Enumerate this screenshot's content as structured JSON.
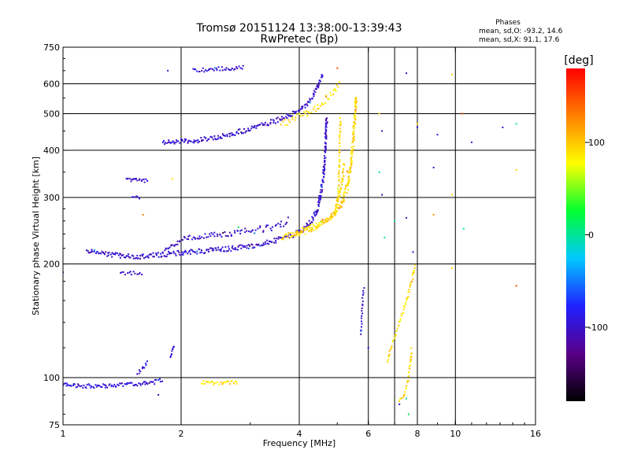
{
  "chart_data": {
    "type": "scatter",
    "title": "Tromsø 20151124 13:38:00-13:39:43",
    "subtitle": "RwPretec (Bp)",
    "xlabel": "Frequency [MHz]",
    "ylabel": "Stationary phase Virtual Height [km]",
    "x_scale": "log",
    "y_scale": "log",
    "xlim": [
      1,
      16
    ],
    "ylim": [
      75,
      750
    ],
    "x_ticks": [
      1,
      2,
      4,
      6,
      8,
      10,
      16
    ],
    "x_tick_labels": [
      "1",
      "2",
      "4",
      "6",
      "8",
      "10",
      "16"
    ],
    "x_grid_lines": [
      2,
      4,
      6,
      7,
      8,
      10
    ],
    "y_ticks": [
      75,
      100,
      200,
      300,
      400,
      500,
      600,
      750
    ],
    "y_tick_labels": [
      "75",
      "100",
      "200",
      "300",
      "400",
      "500",
      "600",
      "750"
    ],
    "y_grid_lines": [
      100,
      200,
      300,
      400,
      500,
      600
    ],
    "grid": true,
    "stats": {
      "heading": "Phases",
      "line_o": "mean, sd,O: -93.2, 14.6",
      "line_x": "mean, sd,X:  91.1, 17.6"
    },
    "colorbar": {
      "label": "[deg]",
      "min": -180,
      "max": 180,
      "ticks": [
        100,
        0,
        -100
      ],
      "tick_labels": [
        "100",
        "0",
        "-100"
      ],
      "stops": [
        "#000000",
        "#5a0088",
        "#2020ff",
        "#00c8ff",
        "#00ff30",
        "#ffff00",
        "#ff8000",
        "#ff0000"
      ]
    },
    "series": [
      {
        "kind": "trace",
        "phase": -95,
        "spread": 0.012,
        "density": 1.4,
        "points": [
          [
            1.0,
            96
          ],
          [
            1.1,
            95
          ],
          [
            1.3,
            95
          ],
          [
            1.5,
            96
          ],
          [
            1.7,
            97
          ],
          [
            1.8,
            99
          ]
        ]
      },
      {
        "kind": "trace",
        "phase": -95,
        "spread": 0.012,
        "density": 1.2,
        "points": [
          [
            1.55,
            103
          ],
          [
            1.6,
            106
          ],
          [
            1.65,
            110
          ]
        ]
      },
      {
        "kind": "trace",
        "phase": -95,
        "spread": 0.008,
        "density": 1.0,
        "points": [
          [
            1.88,
            113
          ],
          [
            1.9,
            118
          ],
          [
            1.92,
            122
          ]
        ]
      },
      {
        "kind": "trace",
        "phase": 92,
        "spread": 0.012,
        "density": 1.2,
        "points": [
          [
            2.25,
            97
          ],
          [
            2.5,
            97
          ],
          [
            2.8,
            97
          ]
        ]
      },
      {
        "kind": "trace",
        "phase": -98,
        "spread": 0.015,
        "density": 1.6,
        "points": [
          [
            1.15,
            216
          ],
          [
            1.3,
            212
          ],
          [
            1.5,
            209
          ],
          [
            1.8,
            212
          ],
          [
            2.2,
            216
          ],
          [
            2.6,
            219
          ],
          [
            3.0,
            223
          ],
          [
            3.4,
            229
          ],
          [
            3.8,
            237
          ],
          [
            4.1,
            247
          ],
          [
            4.3,
            260
          ],
          [
            4.45,
            280
          ],
          [
            4.55,
            310
          ],
          [
            4.62,
            350
          ],
          [
            4.66,
            400
          ],
          [
            4.68,
            450
          ],
          [
            4.7,
            490
          ]
        ]
      },
      {
        "kind": "trace",
        "phase": -102,
        "spread": 0.015,
        "density": 1.2,
        "points": [
          [
            1.8,
            215
          ],
          [
            2.0,
            232
          ],
          [
            2.3,
            238
          ],
          [
            2.7,
            240
          ]
        ]
      },
      {
        "kind": "trace",
        "phase": -100,
        "spread": 0.02,
        "density": 1.0,
        "points": [
          [
            2.7,
            240
          ],
          [
            3.0,
            245
          ],
          [
            3.5,
            250
          ],
          [
            3.8,
            262
          ]
        ]
      },
      {
        "kind": "trace",
        "phase": 92,
        "spread": 0.018,
        "density": 1.6,
        "points": [
          [
            3.6,
            236
          ],
          [
            4.0,
            243
          ],
          [
            4.4,
            252
          ],
          [
            4.8,
            264
          ],
          [
            5.1,
            285
          ],
          [
            5.3,
            320
          ],
          [
            5.42,
            370
          ],
          [
            5.5,
            430
          ],
          [
            5.55,
            500
          ],
          [
            5.6,
            560
          ]
        ]
      },
      {
        "kind": "trace",
        "phase": 95,
        "spread": 0.015,
        "density": 1.2,
        "points": [
          [
            3.8,
            237
          ],
          [
            4.4,
            248
          ],
          [
            4.9,
            270
          ],
          [
            5.15,
            330
          ],
          [
            5.2,
            370
          ]
        ]
      },
      {
        "kind": "trace",
        "phase": 90,
        "spread": 0.01,
        "density": 0.8,
        "points": [
          [
            5.0,
            280
          ],
          [
            5.05,
            350
          ],
          [
            5.08,
            430
          ],
          [
            5.1,
            490
          ]
        ]
      },
      {
        "kind": "trace",
        "phase": -98,
        "spread": 0.015,
        "density": 1.6,
        "points": [
          [
            1.8,
            418
          ],
          [
            2.2,
            425
          ],
          [
            2.6,
            438
          ],
          [
            3.0,
            456
          ],
          [
            3.4,
            475
          ],
          [
            3.8,
            495
          ],
          [
            4.1,
            520
          ],
          [
            4.3,
            550
          ],
          [
            4.45,
            590
          ],
          [
            4.6,
            640
          ]
        ]
      },
      {
        "kind": "trace",
        "phase": -95,
        "spread": 0.012,
        "density": 1.2,
        "points": [
          [
            2.15,
            650
          ],
          [
            2.4,
            655
          ],
          [
            2.7,
            660
          ],
          [
            2.9,
            662
          ]
        ]
      },
      {
        "kind": "trace",
        "phase": 90,
        "spread": 0.02,
        "density": 1.0,
        "points": [
          [
            3.6,
            470
          ],
          [
            4.0,
            490
          ],
          [
            4.4,
            515
          ],
          [
            4.8,
            560
          ],
          [
            5.1,
            600
          ]
        ]
      },
      {
        "kind": "trace",
        "phase": -96,
        "spread": 0.01,
        "density": 1.4,
        "points": [
          [
            1.45,
            335
          ],
          [
            1.55,
            333
          ],
          [
            1.65,
            332
          ]
        ]
      },
      {
        "kind": "trace",
        "phase": -100,
        "spread": 0.008,
        "density": 1.0,
        "points": [
          [
            1.5,
            302
          ],
          [
            1.58,
            300
          ]
        ]
      },
      {
        "kind": "trace",
        "phase": -100,
        "spread": 0.015,
        "density": 1.0,
        "points": [
          [
            1.4,
            190
          ],
          [
            1.5,
            190
          ],
          [
            1.6,
            190
          ]
        ]
      },
      {
        "kind": "trace",
        "phase": 90,
        "spread": 0.01,
        "density": 0.8,
        "points": [
          [
            6.7,
            110
          ],
          [
            6.95,
            125
          ],
          [
            7.2,
            140
          ],
          [
            7.5,
            160
          ],
          [
            7.8,
            185
          ],
          [
            7.9,
            200
          ]
        ]
      },
      {
        "kind": "trace",
        "phase": 95,
        "spread": 0.01,
        "density": 0.8,
        "points": [
          [
            7.2,
            87
          ],
          [
            7.4,
            90
          ],
          [
            7.6,
            100
          ],
          [
            7.75,
            120
          ]
        ]
      },
      {
        "kind": "trace",
        "phase": -100,
        "spread": 0.008,
        "density": 0.6,
        "points": [
          [
            5.75,
            130
          ],
          [
            5.8,
            160
          ],
          [
            5.85,
            175
          ]
        ]
      },
      {
        "kind": "dots",
        "points": [
          [
            1.0,
            190,
            -100
          ],
          [
            1.85,
            650,
            -100
          ],
          [
            1.9,
            336,
            92
          ],
          [
            7.5,
            640,
            -95
          ],
          [
            8.0,
            460,
            -100
          ],
          [
            9.0,
            440,
            -100
          ],
          [
            9.8,
            635,
            95
          ],
          [
            10.4,
            500,
            150
          ],
          [
            11.0,
            420,
            -100
          ],
          [
            13.2,
            460,
            -100
          ],
          [
            14.3,
            470,
            0
          ],
          [
            14.3,
            355,
            95
          ],
          [
            6.4,
            350,
            0
          ],
          [
            6.5,
            305,
            -110
          ],
          [
            6.5,
            450,
            -100
          ],
          [
            6.4,
            500,
            90
          ],
          [
            7.0,
            260,
            -5
          ],
          [
            7.5,
            265,
            -100
          ],
          [
            8.8,
            270,
            120
          ],
          [
            8.8,
            360,
            -100
          ],
          [
            9.8,
            305,
            95
          ],
          [
            10.5,
            248,
            0
          ],
          [
            7.8,
            215,
            -100
          ],
          [
            8.0,
            470,
            95
          ],
          [
            9.8,
            195,
            95
          ],
          [
            14.3,
            175,
            150
          ],
          [
            6.6,
            235,
            5
          ],
          [
            5.3,
            352,
            130
          ],
          [
            5.0,
            660,
            150
          ],
          [
            1.6,
            270,
            130
          ],
          [
            2.8,
            250,
            10
          ],
          [
            7.2,
            85,
            -100
          ],
          [
            7.5,
            88,
            0
          ],
          [
            7.6,
            80,
            20
          ],
          [
            6.0,
            120,
            -100
          ],
          [
            1.62,
            96,
            -100
          ],
          [
            1.75,
            90,
            -100
          ]
        ]
      }
    ]
  }
}
